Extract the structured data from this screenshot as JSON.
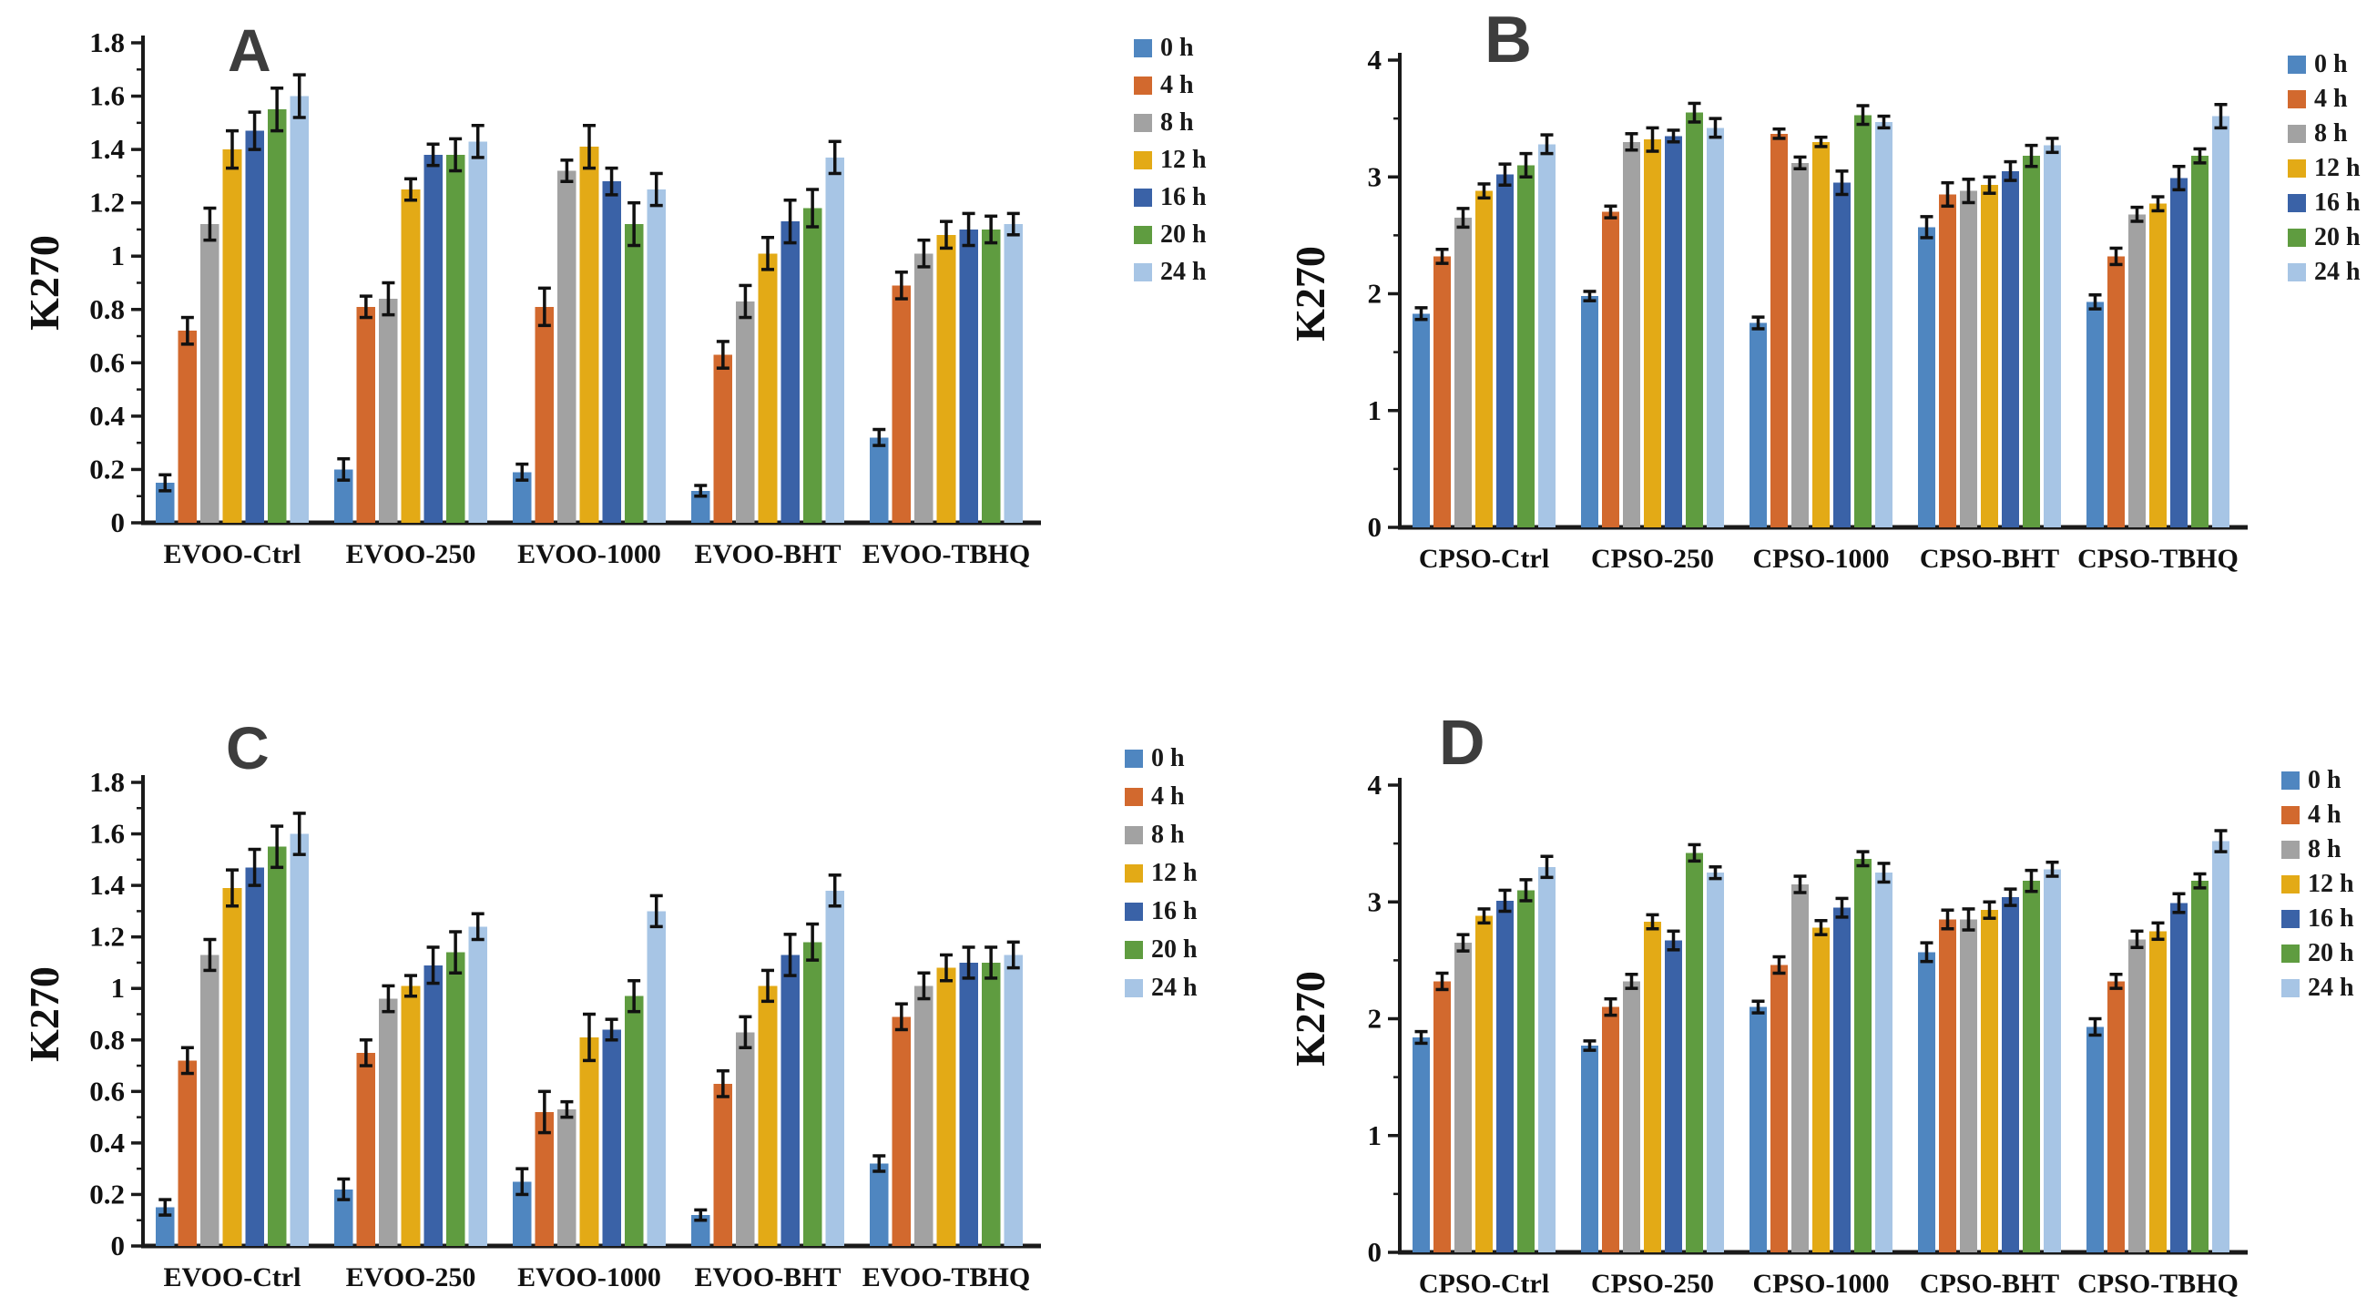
{
  "page": {
    "background": "#ffffff"
  },
  "style": {
    "series_colors": [
      "#4F86C0",
      "#D2692E",
      "#A2A2A2",
      "#E3AA16",
      "#3A62A7",
      "#5F9C40",
      "#A7C5E5"
    ],
    "axis_color": "#1a1a1a",
    "error_bar_color": "#111111",
    "title_color": "#3d3d3d"
  },
  "legend": {
    "entries": [
      "0 h",
      "4 h",
      "8 h",
      "12 h",
      "16 h",
      "20 h",
      "24 h"
    ]
  },
  "chart_data": [
    {
      "type": "bar",
      "title": "A",
      "ylabel": "K270",
      "xlabel": "",
      "ylim": [
        0,
        1.8
      ],
      "ytick_step": 0.2,
      "ytick_minor_step": 0.1,
      "grid": false,
      "legend_position": "right",
      "error_bars": true,
      "categories": [
        "EVOO-Ctrl",
        "EVOO-250",
        "EVOO-1000",
        "EVOO-BHT",
        "EVOO-TBHQ"
      ],
      "series": [
        {
          "name": "0 h",
          "values": [
            0.15,
            0.2,
            0.19,
            0.12,
            0.32
          ],
          "errors": [
            0.03,
            0.04,
            0.03,
            0.02,
            0.03
          ]
        },
        {
          "name": "4 h",
          "values": [
            0.72,
            0.81,
            0.81,
            0.63,
            0.89
          ],
          "errors": [
            0.05,
            0.04,
            0.07,
            0.05,
            0.05
          ]
        },
        {
          "name": "8 h",
          "values": [
            1.12,
            0.84,
            1.32,
            0.83,
            1.01
          ],
          "errors": [
            0.06,
            0.06,
            0.04,
            0.06,
            0.05
          ]
        },
        {
          "name": "12 h",
          "values": [
            1.4,
            1.25,
            1.41,
            1.01,
            1.08
          ],
          "errors": [
            0.07,
            0.04,
            0.08,
            0.06,
            0.05
          ]
        },
        {
          "name": "16 h",
          "values": [
            1.47,
            1.38,
            1.28,
            1.13,
            1.1
          ],
          "errors": [
            0.07,
            0.04,
            0.05,
            0.08,
            0.06
          ]
        },
        {
          "name": "20 h",
          "values": [
            1.55,
            1.38,
            1.12,
            1.18,
            1.1
          ],
          "errors": [
            0.08,
            0.06,
            0.08,
            0.07,
            0.05
          ]
        },
        {
          "name": "24 h",
          "values": [
            1.6,
            1.43,
            1.25,
            1.37,
            1.12
          ],
          "errors": [
            0.08,
            0.06,
            0.06,
            0.06,
            0.04
          ]
        }
      ]
    },
    {
      "type": "bar",
      "title": "B",
      "ylabel": "K270",
      "xlabel": "",
      "ylim": [
        0,
        4
      ],
      "ytick_step": 1,
      "ytick_minor_step": 0.5,
      "grid": false,
      "legend_position": "right",
      "error_bars": true,
      "categories": [
        "CPSO-Ctrl",
        "CPSO-250",
        "CPSO-1000",
        "CPSO-BHT",
        "CPSO-TBHQ"
      ],
      "series": [
        {
          "name": "0 h",
          "values": [
            1.83,
            1.98,
            1.75,
            2.57,
            1.93
          ],
          "errors": [
            0.05,
            0.04,
            0.05,
            0.09,
            0.06
          ]
        },
        {
          "name": "4 h",
          "values": [
            2.32,
            2.7,
            3.37,
            2.85,
            2.32
          ],
          "errors": [
            0.06,
            0.05,
            0.04,
            0.1,
            0.07
          ]
        },
        {
          "name": "8 h",
          "values": [
            2.65,
            3.3,
            3.12,
            2.88,
            2.68
          ],
          "errors": [
            0.08,
            0.07,
            0.05,
            0.1,
            0.06
          ]
        },
        {
          "name": "12 h",
          "values": [
            2.88,
            3.32,
            3.3,
            2.93,
            2.77
          ],
          "errors": [
            0.06,
            0.1,
            0.04,
            0.07,
            0.06
          ]
        },
        {
          "name": "16 h",
          "values": [
            3.02,
            3.35,
            2.95,
            3.05,
            2.99
          ],
          "errors": [
            0.09,
            0.05,
            0.1,
            0.08,
            0.1
          ]
        },
        {
          "name": "20 h",
          "values": [
            3.1,
            3.55,
            3.53,
            3.18,
            3.18
          ],
          "errors": [
            0.1,
            0.08,
            0.08,
            0.09,
            0.06
          ]
        },
        {
          "name": "24 h",
          "values": [
            3.28,
            3.42,
            3.47,
            3.27,
            3.52
          ],
          "errors": [
            0.08,
            0.08,
            0.05,
            0.06,
            0.1
          ]
        }
      ]
    },
    {
      "type": "bar",
      "title": "C",
      "ylabel": "K270",
      "xlabel": "",
      "ylim": [
        0,
        1.8
      ],
      "ytick_step": 0.2,
      "ytick_minor_step": 0.1,
      "grid": false,
      "legend_position": "right",
      "error_bars": true,
      "categories": [
        "EVOO-Ctrl",
        "EVOO-250",
        "EVOO-1000",
        "EVOO-BHT",
        "EVOO-TBHQ"
      ],
      "series": [
        {
          "name": "0 h",
          "values": [
            0.15,
            0.22,
            0.25,
            0.12,
            0.32
          ],
          "errors": [
            0.03,
            0.04,
            0.05,
            0.02,
            0.03
          ]
        },
        {
          "name": "4 h",
          "values": [
            0.72,
            0.75,
            0.52,
            0.63,
            0.89
          ],
          "errors": [
            0.05,
            0.05,
            0.08,
            0.05,
            0.05
          ]
        },
        {
          "name": "8 h",
          "values": [
            1.13,
            0.96,
            0.53,
            0.83,
            1.01
          ],
          "errors": [
            0.06,
            0.05,
            0.03,
            0.06,
            0.05
          ]
        },
        {
          "name": "12 h",
          "values": [
            1.39,
            1.01,
            0.81,
            1.01,
            1.08
          ],
          "errors": [
            0.07,
            0.04,
            0.09,
            0.06,
            0.05
          ]
        },
        {
          "name": "16 h",
          "values": [
            1.47,
            1.09,
            0.84,
            1.13,
            1.1
          ],
          "errors": [
            0.07,
            0.07,
            0.04,
            0.08,
            0.06
          ]
        },
        {
          "name": "20 h",
          "values": [
            1.55,
            1.14,
            0.97,
            1.18,
            1.1
          ],
          "errors": [
            0.08,
            0.08,
            0.06,
            0.07,
            0.06
          ]
        },
        {
          "name": "24 h",
          "values": [
            1.6,
            1.24,
            1.3,
            1.38,
            1.13
          ],
          "errors": [
            0.08,
            0.05,
            0.06,
            0.06,
            0.05
          ]
        }
      ]
    },
    {
      "type": "bar",
      "title": "D",
      "ylabel": "K270",
      "xlabel": "",
      "ylim": [
        0,
        4
      ],
      "ytick_step": 1,
      "ytick_minor_step": 0.5,
      "grid": false,
      "legend_position": "right",
      "error_bars": true,
      "categories": [
        "CPSO-Ctrl",
        "CPSO-250",
        "CPSO-1000",
        "CPSO-BHT",
        "CPSO-TBHQ"
      ],
      "series": [
        {
          "name": "0 h",
          "values": [
            1.84,
            1.77,
            2.1,
            2.57,
            1.93
          ],
          "errors": [
            0.05,
            0.04,
            0.05,
            0.08,
            0.07
          ]
        },
        {
          "name": "4 h",
          "values": [
            2.32,
            2.1,
            2.46,
            2.85,
            2.32
          ],
          "errors": [
            0.07,
            0.07,
            0.07,
            0.08,
            0.06
          ]
        },
        {
          "name": "8 h",
          "values": [
            2.65,
            2.32,
            3.15,
            2.85,
            2.68
          ],
          "errors": [
            0.07,
            0.06,
            0.07,
            0.09,
            0.07
          ]
        },
        {
          "name": "12 h",
          "values": [
            2.88,
            2.83,
            2.78,
            2.93,
            2.75
          ],
          "errors": [
            0.06,
            0.06,
            0.06,
            0.07,
            0.07
          ]
        },
        {
          "name": "16 h",
          "values": [
            3.01,
            2.67,
            2.95,
            3.04,
            2.99
          ],
          "errors": [
            0.09,
            0.08,
            0.08,
            0.07,
            0.08
          ]
        },
        {
          "name": "20 h",
          "values": [
            3.1,
            3.42,
            3.37,
            3.18,
            3.18
          ],
          "errors": [
            0.09,
            0.07,
            0.06,
            0.09,
            0.06
          ]
        },
        {
          "name": "24 h",
          "values": [
            3.3,
            3.25,
            3.25,
            3.28,
            3.52
          ],
          "errors": [
            0.09,
            0.05,
            0.08,
            0.06,
            0.09
          ]
        }
      ]
    }
  ]
}
